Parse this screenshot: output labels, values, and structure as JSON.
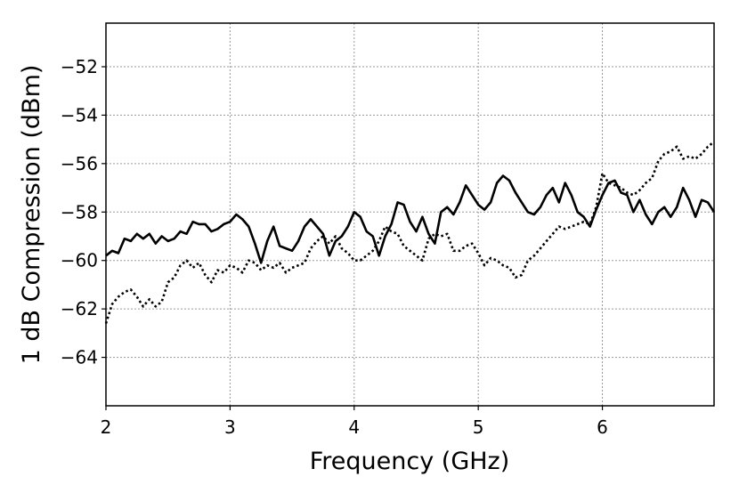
{
  "chart_data": {
    "type": "line",
    "title": "",
    "xlabel": "Frequency (GHz)",
    "ylabel": "1 dB Compression (dBm)",
    "xlim": [
      2,
      6.9
    ],
    "ylim": [
      -66,
      -50.2
    ],
    "xticks": [
      2,
      3,
      4,
      5,
      6
    ],
    "yticks": [
      -64,
      -62,
      -60,
      -58,
      -56,
      -54,
      -52
    ],
    "xtick_labels": [
      "2",
      "3",
      "4",
      "5",
      "6"
    ],
    "ytick_labels": [
      "−64",
      "−62",
      "−60",
      "−58",
      "−56",
      "−54",
      "−52"
    ],
    "grid": true,
    "legend": null,
    "series": [
      {
        "style": "solid",
        "color": "#000000",
        "x": [
          2.0,
          2.05,
          2.1,
          2.15,
          2.2,
          2.25,
          2.3,
          2.35,
          2.4,
          2.45,
          2.5,
          2.55,
          2.6,
          2.65,
          2.7,
          2.75,
          2.8,
          2.85,
          2.9,
          2.95,
          3.0,
          3.05,
          3.1,
          3.15,
          3.2,
          3.25,
          3.3,
          3.35,
          3.4,
          3.45,
          3.5,
          3.55,
          3.6,
          3.65,
          3.7,
          3.75,
          3.8,
          3.85,
          3.9,
          3.95,
          4.0,
          4.05,
          4.1,
          4.15,
          4.2,
          4.25,
          4.3,
          4.35,
          4.4,
          4.45,
          4.5,
          4.55,
          4.6,
          4.65,
          4.7,
          4.75,
          4.8,
          4.85,
          4.9,
          4.95,
          5.0,
          5.05,
          5.1,
          5.15,
          5.2,
          5.25,
          5.3,
          5.35,
          5.4,
          5.45,
          5.5,
          5.55,
          5.6,
          5.65,
          5.7,
          5.75,
          5.8,
          5.85,
          5.9,
          5.95,
          6.0,
          6.05,
          6.1,
          6.15,
          6.2,
          6.25,
          6.3,
          6.35,
          6.4,
          6.45,
          6.5,
          6.55,
          6.6,
          6.65,
          6.7,
          6.75,
          6.8,
          6.85,
          6.9
        ],
        "y": [
          -59.8,
          -59.6,
          -59.7,
          -59.1,
          -59.2,
          -58.9,
          -59.1,
          -58.9,
          -59.3,
          -59.0,
          -59.2,
          -59.1,
          -58.8,
          -58.9,
          -58.4,
          -58.5,
          -58.5,
          -58.8,
          -58.7,
          -58.5,
          -58.4,
          -58.1,
          -58.3,
          -58.6,
          -59.3,
          -60.1,
          -59.2,
          -58.6,
          -59.4,
          -59.5,
          -59.6,
          -59.2,
          -58.6,
          -58.3,
          -58.6,
          -58.9,
          -59.8,
          -59.2,
          -59.0,
          -58.6,
          -58.0,
          -58.2,
          -58.8,
          -59.0,
          -59.8,
          -59.0,
          -58.5,
          -57.6,
          -57.7,
          -58.4,
          -58.8,
          -58.2,
          -58.9,
          -59.3,
          -58.0,
          -57.8,
          -58.1,
          -57.6,
          -56.9,
          -57.3,
          -57.7,
          -57.9,
          -57.6,
          -56.8,
          -56.5,
          -56.7,
          -57.2,
          -57.6,
          -58.0,
          -58.1,
          -57.8,
          -57.3,
          -57.0,
          -57.6,
          -56.8,
          -57.3,
          -58.0,
          -58.2,
          -58.6,
          -57.9,
          -57.3,
          -56.8,
          -56.7,
          -57.2,
          -57.3,
          -58.0,
          -57.5,
          -58.1,
          -58.5,
          -58.0,
          -57.8,
          -58.2,
          -57.8,
          -57.0,
          -57.5,
          -58.2,
          -57.5,
          -57.6,
          -58.0
        ]
      },
      {
        "style": "dotted",
        "color": "#000000",
        "x": [
          2.0,
          2.05,
          2.1,
          2.15,
          2.2,
          2.25,
          2.3,
          2.35,
          2.4,
          2.45,
          2.5,
          2.55,
          2.6,
          2.65,
          2.7,
          2.75,
          2.8,
          2.85,
          2.9,
          2.95,
          3.0,
          3.05,
          3.1,
          3.15,
          3.2,
          3.25,
          3.3,
          3.35,
          3.4,
          3.45,
          3.5,
          3.55,
          3.6,
          3.65,
          3.7,
          3.75,
          3.8,
          3.85,
          3.9,
          3.95,
          4.0,
          4.05,
          4.1,
          4.15,
          4.2,
          4.25,
          4.3,
          4.35,
          4.4,
          4.45,
          4.5,
          4.55,
          4.6,
          4.65,
          4.7,
          4.75,
          4.8,
          4.85,
          4.9,
          4.95,
          5.0,
          5.05,
          5.1,
          5.15,
          5.2,
          5.25,
          5.3,
          5.35,
          5.4,
          5.45,
          5.5,
          5.55,
          5.6,
          5.65,
          5.7,
          5.75,
          5.8,
          5.85,
          5.9,
          5.95,
          6.0,
          6.05,
          6.1,
          6.15,
          6.2,
          6.25,
          6.3,
          6.35,
          6.4,
          6.45,
          6.5,
          6.55,
          6.6,
          6.65,
          6.7,
          6.75,
          6.8,
          6.85,
          6.9
        ],
        "y": [
          -62.6,
          -61.8,
          -61.5,
          -61.3,
          -61.2,
          -61.5,
          -61.9,
          -61.6,
          -61.9,
          -61.7,
          -60.9,
          -60.7,
          -60.2,
          -60.0,
          -60.3,
          -60.1,
          -60.6,
          -60.9,
          -60.4,
          -60.5,
          -60.2,
          -60.3,
          -60.5,
          -60.0,
          -60.1,
          -60.4,
          -60.2,
          -60.3,
          -60.1,
          -60.5,
          -60.3,
          -60.2,
          -60.1,
          -59.5,
          -59.2,
          -59.0,
          -59.3,
          -59.0,
          -59.5,
          -59.7,
          -60.0,
          -60.0,
          -59.8,
          -59.6,
          -59.2,
          -58.6,
          -58.8,
          -58.9,
          -59.4,
          -59.6,
          -59.8,
          -60.0,
          -59.1,
          -58.9,
          -59.0,
          -58.9,
          -59.6,
          -59.6,
          -59.4,
          -59.3,
          -59.7,
          -60.2,
          -59.9,
          -60.0,
          -60.2,
          -60.3,
          -60.7,
          -60.6,
          -60.0,
          -59.8,
          -59.5,
          -59.2,
          -58.9,
          -58.6,
          -58.7,
          -58.6,
          -58.5,
          -58.4,
          -58.5,
          -57.8,
          -56.4,
          -56.8,
          -56.9,
          -57.0,
          -57.2,
          -57.3,
          -57.1,
          -56.8,
          -56.6,
          -55.9,
          -55.6,
          -55.5,
          -55.3,
          -55.8,
          -55.7,
          -55.8,
          -55.6,
          -55.3,
          -55.1
        ]
      }
    ]
  }
}
